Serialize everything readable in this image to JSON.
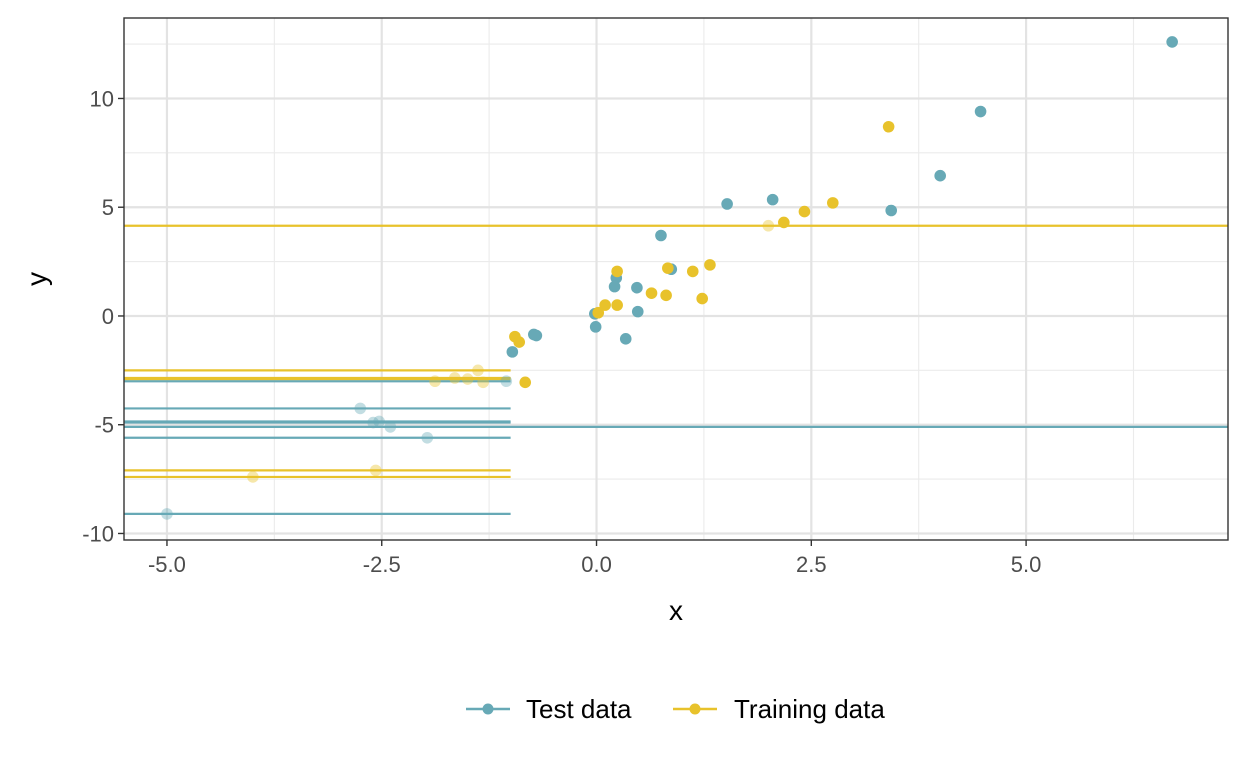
{
  "chart_data": {
    "type": "scatter",
    "title": "",
    "xlabel": "x",
    "ylabel": "y",
    "xlim": [
      -5.5,
      7.35
    ],
    "ylim": [
      -10.3,
      13.7
    ],
    "xticks": [
      -5.0,
      -2.5,
      0.0,
      2.5,
      5.0
    ],
    "xtick_labels": [
      "-5.0",
      "-2.5",
      "0.0",
      "2.5",
      "5.0"
    ],
    "yticks": [
      -10,
      -5,
      0,
      5,
      10
    ],
    "ytick_labels": [
      "-10",
      "-5",
      "0",
      "5",
      "10"
    ],
    "grid": true,
    "legend_position": "bottom",
    "series": [
      {
        "name": "Test data",
        "color": "#67a9b6",
        "points": [
          {
            "x": 6.7,
            "y": 12.6,
            "faded": false
          },
          {
            "x": 4.47,
            "y": 9.4,
            "faded": false
          },
          {
            "x": 4.0,
            "y": 6.45,
            "faded": false
          },
          {
            "x": 3.43,
            "y": 4.85,
            "faded": false
          },
          {
            "x": 2.05,
            "y": 5.35,
            "faded": false
          },
          {
            "x": 1.52,
            "y": 5.15,
            "faded": false
          },
          {
            "x": 0.75,
            "y": 3.7,
            "faded": false
          },
          {
            "x": 0.87,
            "y": 2.15,
            "faded": false
          },
          {
            "x": 0.23,
            "y": 1.75,
            "faded": false
          },
          {
            "x": 0.21,
            "y": 1.35,
            "faded": false
          },
          {
            "x": 0.47,
            "y": 1.3,
            "faded": false
          },
          {
            "x": -0.02,
            "y": 0.1,
            "faded": false
          },
          {
            "x": -0.01,
            "y": -0.5,
            "faded": false
          },
          {
            "x": 0.48,
            "y": 0.2,
            "faded": false
          },
          {
            "x": 0.34,
            "y": -1.05,
            "faded": false
          },
          {
            "x": -0.7,
            "y": -0.9,
            "faded": false
          },
          {
            "x": -0.73,
            "y": -0.85,
            "faded": false
          },
          {
            "x": -0.98,
            "y": -1.65,
            "faded": false
          },
          {
            "x": -1.05,
            "y": -3.0,
            "faded": true
          },
          {
            "x": -2.75,
            "y": -4.25,
            "faded": true
          },
          {
            "x": -2.6,
            "y": -4.9,
            "faded": true
          },
          {
            "x": -2.53,
            "y": -4.85,
            "faded": true
          },
          {
            "x": -2.4,
            "y": -5.1,
            "faded": true
          },
          {
            "x": -1.97,
            "y": -5.6,
            "faded": true
          },
          {
            "x": -5.0,
            "y": -9.1,
            "faded": true
          }
        ],
        "hlines": [
          {
            "y": -5.1,
            "xmin": -5.5,
            "xmax": 7.35
          },
          {
            "y": -3.0,
            "xmin": -5.5,
            "xmax": -1.0
          },
          {
            "y": -4.25,
            "xmin": -5.5,
            "xmax": -1.0
          },
          {
            "y": -4.9,
            "xmin": -5.5,
            "xmax": -1.0
          },
          {
            "y": -4.85,
            "xmin": -5.5,
            "xmax": -1.0
          },
          {
            "y": -5.6,
            "xmin": -5.5,
            "xmax": -1.0
          },
          {
            "y": -9.1,
            "xmin": -5.5,
            "xmax": -1.0
          }
        ]
      },
      {
        "name": "Training data",
        "color": "#e8c22b",
        "points": [
          {
            "x": 3.4,
            "y": 8.7,
            "faded": false
          },
          {
            "x": 2.75,
            "y": 5.2,
            "faded": false
          },
          {
            "x": 2.42,
            "y": 4.8,
            "faded": false
          },
          {
            "x": 2.18,
            "y": 4.3,
            "faded": false
          },
          {
            "x": 2.0,
            "y": 4.15,
            "faded": true
          },
          {
            "x": 1.32,
            "y": 2.35,
            "faded": false
          },
          {
            "x": 1.12,
            "y": 2.05,
            "faded": false
          },
          {
            "x": 1.23,
            "y": 0.8,
            "faded": false
          },
          {
            "x": 0.83,
            "y": 2.2,
            "faded": false
          },
          {
            "x": 0.81,
            "y": 0.95,
            "faded": false
          },
          {
            "x": 0.64,
            "y": 1.05,
            "faded": false
          },
          {
            "x": 0.24,
            "y": 2.05,
            "faded": false
          },
          {
            "x": 0.24,
            "y": 0.5,
            "faded": false
          },
          {
            "x": 0.1,
            "y": 0.5,
            "faded": false
          },
          {
            "x": 0.02,
            "y": 0.15,
            "faded": false
          },
          {
            "x": -0.95,
            "y": -0.95,
            "faded": false
          },
          {
            "x": -0.9,
            "y": -1.2,
            "faded": false
          },
          {
            "x": -0.83,
            "y": -3.05,
            "faded": false
          },
          {
            "x": -1.88,
            "y": -3.0,
            "faded": true
          },
          {
            "x": -1.65,
            "y": -2.85,
            "faded": true
          },
          {
            "x": -1.5,
            "y": -2.9,
            "faded": true
          },
          {
            "x": -1.38,
            "y": -2.5,
            "faded": true
          },
          {
            "x": -1.32,
            "y": -3.05,
            "faded": true
          },
          {
            "x": -2.57,
            "y": -7.1,
            "faded": true
          },
          {
            "x": -4.0,
            "y": -7.4,
            "faded": true
          }
        ],
        "hlines": [
          {
            "y": 4.15,
            "xmin": -5.5,
            "xmax": 7.35
          },
          {
            "y": -2.5,
            "xmin": -5.5,
            "xmax": -1.0
          },
          {
            "y": -2.85,
            "xmin": -5.5,
            "xmax": -1.0
          },
          {
            "y": -2.9,
            "xmin": -5.5,
            "xmax": -1.0
          },
          {
            "y": -7.1,
            "xmin": -5.5,
            "xmax": -1.0
          },
          {
            "y": -7.4,
            "xmin": -5.5,
            "xmax": -1.0
          }
        ]
      }
    ]
  }
}
